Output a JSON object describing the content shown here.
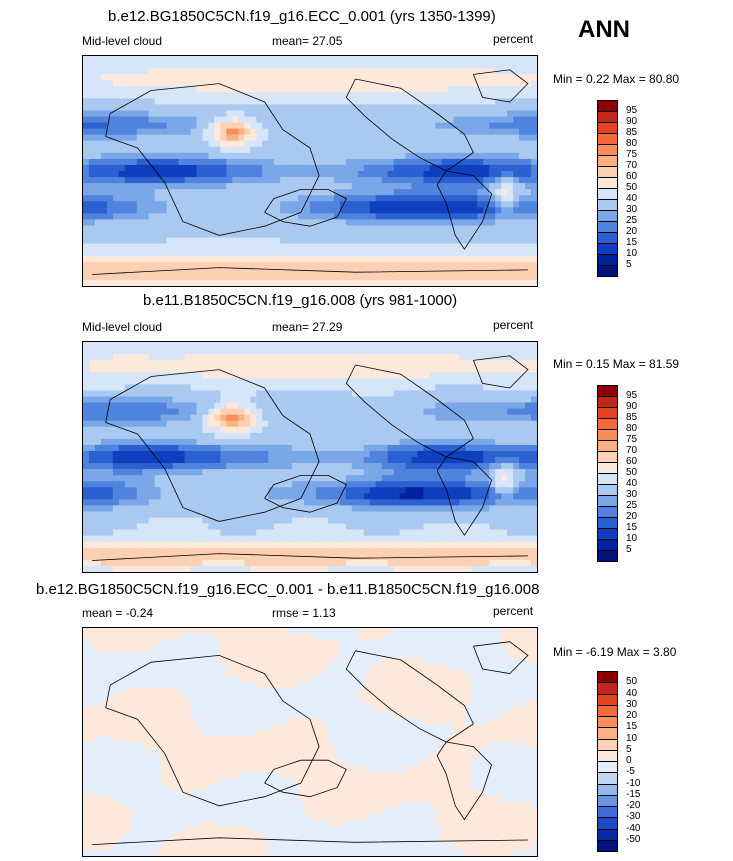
{
  "season": "ANN",
  "panels": [
    {
      "title": "b.e12.BG1850C5CN.f19_g16.ECC_0.001 (yrs 1350-1399)",
      "left": "Mid-level cloud",
      "center": "mean=  27.05",
      "right": "percent",
      "minmax": "Min =   0.22 Max =  80.80",
      "levels": [
        "95",
        "90",
        "85",
        "80",
        "75",
        "70",
        "60",
        "50",
        "40",
        "30",
        "25",
        "20",
        "15",
        "10",
        "5"
      ],
      "colors": [
        "#8b0000",
        "#c1271a",
        "#e4431f",
        "#f46a3a",
        "#f88e5a",
        "#fbb184",
        "#fcd0b3",
        "#fde9dc",
        "#d6e6f8",
        "#aac9f0",
        "#7aa7e8",
        "#4f83dd",
        "#2b60d0",
        "#0f3fbf",
        "#00239b",
        "#00137a"
      ],
      "mode": "abs"
    },
    {
      "title": "b.e11.B1850C5CN.f19_g16.008 (yrs 981-1000)",
      "left": "Mid-level cloud",
      "center": "mean=  27.29",
      "right": "percent",
      "minmax": "Min =   0.15 Max =  81.59",
      "levels": [
        "95",
        "90",
        "85",
        "80",
        "75",
        "70",
        "60",
        "50",
        "40",
        "30",
        "25",
        "20",
        "15",
        "10",
        "5"
      ],
      "colors": [
        "#8b0000",
        "#c1271a",
        "#e4431f",
        "#f46a3a",
        "#f88e5a",
        "#fbb184",
        "#fcd0b3",
        "#fde9dc",
        "#d6e6f8",
        "#aac9f0",
        "#7aa7e8",
        "#4f83dd",
        "#2b60d0",
        "#0f3fbf",
        "#00239b",
        "#00137a"
      ],
      "mode": "abs"
    },
    {
      "title": "b.e12.BG1850C5CN.f19_g16.ECC_0.001 - b.e11.B1850C5CN.f19_g16.008",
      "left": "mean =  -0.24",
      "center": "rmse =   1.13",
      "right": "percent",
      "minmax": "Min =  -6.19 Max =   3.80",
      "levels": [
        "50",
        "40",
        "30",
        "20",
        "15",
        "10",
        "5",
        "0",
        "-5",
        "-10",
        "-15",
        "-20",
        "-30",
        "-40",
        "-50"
      ],
      "colors": [
        "#8b0000",
        "#c1271a",
        "#e4431f",
        "#f46a3a",
        "#f88e5a",
        "#fbb184",
        "#fcd0b3",
        "#fde9dc",
        "#e4eefb",
        "#c2d8f4",
        "#95b8ec",
        "#6795e2",
        "#3d6fd6",
        "#1a4cc6",
        "#032aa3",
        "#00137a"
      ],
      "mode": "diff"
    }
  ]
}
